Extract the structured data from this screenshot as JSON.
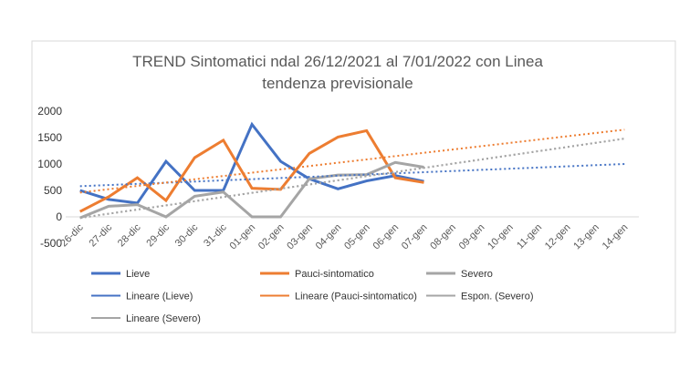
{
  "chart_data": {
    "type": "line",
    "title": [
      "TREND Sintomatici  ndal 26/12/2021 al 7/01/2022 con Linea",
      "tendenza previsionale"
    ],
    "categories": [
      "26-dic",
      "27-dic",
      "28-dic",
      "29-dic",
      "30-dic",
      "31-dic",
      "01-gen",
      "02-gen",
      "03-gen",
      "04-gen",
      "05-gen",
      "06-gen",
      "07-gen",
      "08-gen",
      "09-gen",
      "10-gen",
      "11-gen",
      "12-gen",
      "13-gen",
      "14-gen"
    ],
    "ylim": [
      -500,
      2000
    ],
    "yticks": [
      -500,
      0,
      500,
      1000,
      1500,
      2000
    ],
    "series": [
      {
        "name": "Lieve",
        "color": "#4472c4",
        "dash": false,
        "values": [
          500,
          330,
          260,
          1050,
          500,
          500,
          1750,
          1050,
          720,
          530,
          680,
          780,
          670,
          null,
          null,
          null,
          null,
          null,
          null,
          null
        ]
      },
      {
        "name": "Pauci-sintomatico",
        "color": "#ed7d31",
        "dash": false,
        "values": [
          100,
          380,
          740,
          310,
          1120,
          1450,
          540,
          520,
          1200,
          1510,
          1630,
          740,
          650,
          null,
          null,
          null,
          null,
          null,
          null,
          null
        ]
      },
      {
        "name": "Severo",
        "color": "#a5a5a5",
        "dash": false,
        "values": [
          -20,
          200,
          230,
          0,
          390,
          470,
          0,
          0,
          720,
          790,
          800,
          1030,
          940,
          null,
          null,
          null,
          null,
          null,
          null,
          null
        ]
      },
      {
        "name": "Lineare (Lieve)",
        "color": "#4472c4",
        "dash": true,
        "values": [
          580,
          602,
          624,
          646,
          668,
          691,
          713,
          735,
          757,
          779,
          801,
          823,
          845,
          867,
          889,
          911,
          933,
          956,
          978,
          1000
        ]
      },
      {
        "name": "Lineare (Pauci-sintomatico)",
        "color": "#ed7d31",
        "dash": true,
        "values": [
          460,
          523,
          585,
          648,
          711,
          773,
          836,
          898,
          961,
          1024,
          1086,
          1149,
          1212,
          1274,
          1337,
          1399,
          1462,
          1525,
          1587,
          1650
        ]
      },
      {
        "name": "Espon. (Severo)",
        "color": "#a5a5a5",
        "dash": true,
        "values": [
          -20,
          59,
          138,
          217,
          296,
          375,
          454,
          533,
          612,
          691,
          769,
          848,
          927,
          1006,
          1085,
          1164,
          1243,
          1322,
          1401,
          1480
        ]
      },
      {
        "name": "Lineare (Severo)",
        "color": "#a5a5a5",
        "dash": true,
        "values": [
          -20,
          59,
          138,
          217,
          296,
          375,
          454,
          533,
          612,
          691,
          769,
          848,
          927,
          1006,
          1085,
          1164,
          1243,
          1322,
          1401,
          1480
        ]
      }
    ]
  }
}
